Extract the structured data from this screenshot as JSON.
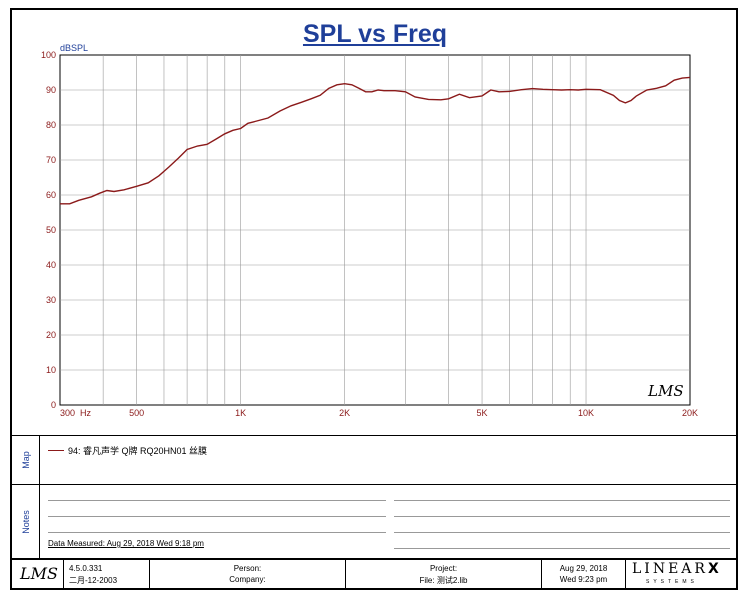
{
  "chart_data": {
    "type": "line",
    "title": "SPL vs Freq",
    "ylabel": "dBSPL",
    "xlabel": "",
    "xscale": "log",
    "xlim": [
      300,
      20000
    ],
    "ylim": [
      0,
      100
    ],
    "grid": true,
    "y_ticks": [
      "0",
      "10",
      "20",
      "30",
      "40",
      "50",
      "60",
      "70",
      "80",
      "90",
      "100"
    ],
    "x_ticks": [
      {
        "value": 300,
        "label": "300  Hz"
      },
      {
        "value": 500,
        "label": "500"
      },
      {
        "value": 1000,
        "label": "1K"
      },
      {
        "value": 2000,
        "label": "2K"
      },
      {
        "value": 5000,
        "label": "5K"
      },
      {
        "value": 10000,
        "label": "10K"
      },
      {
        "value": 20000,
        "label": "20K"
      }
    ],
    "series": [
      {
        "name": "94: 睿凡声学 Q牌 RQ20HN01 丝膜",
        "color": "#8b1a1a",
        "x": [
          300,
          320,
          340,
          370,
          390,
          410,
          430,
          460,
          500,
          540,
          580,
          620,
          660,
          700,
          750,
          800,
          850,
          900,
          950,
          1000,
          1050,
          1100,
          1200,
          1300,
          1400,
          1500,
          1600,
          1700,
          1800,
          1900,
          2000,
          2100,
          2200,
          2300,
          2400,
          2500,
          2600,
          2800,
          3000,
          3200,
          3500,
          3800,
          4000,
          4300,
          4600,
          5000,
          5300,
          5600,
          6000,
          6500,
          7000,
          7500,
          8000,
          8500,
          9000,
          9500,
          10000,
          11000,
          12000,
          12500,
          13000,
          13500,
          14000,
          15000,
          16000,
          17000,
          18000,
          19000,
          20000
        ],
        "y": [
          57.5,
          57.5,
          58.5,
          59.5,
          60.5,
          61.3,
          61,
          61.5,
          62.5,
          63.5,
          65.5,
          68,
          70.5,
          73,
          74,
          74.5,
          76,
          77.5,
          78.5,
          79,
          80.5,
          81,
          82,
          84,
          85.5,
          86.5,
          87.5,
          88.5,
          90.5,
          91.5,
          91.8,
          91.5,
          90.5,
          89.5,
          89.5,
          90,
          89.8,
          89.8,
          89.5,
          88,
          87.3,
          87.2,
          87.5,
          88.8,
          87.8,
          88.3,
          90,
          89.5,
          89.6,
          90.1,
          90.4,
          90.2,
          90.1,
          90,
          90.1,
          90,
          90.2,
          90.1,
          88.5,
          87,
          86.3,
          87,
          88.3,
          90,
          90.5,
          91.2,
          92.8,
          93.4,
          93.6
        ]
      }
    ]
  },
  "side_labels": {
    "map": "Map",
    "notes": "Notes"
  },
  "notes": {
    "measured": "Data Measured: Aug 29, 2018  Wed  9:18 pm"
  },
  "footer": {
    "logo": "LMS",
    "version": "4.5.0.331",
    "build_date": "二月-12-2003",
    "person": "Person:",
    "company": "Company:",
    "project": "Project:",
    "file": "File: 测试2.lib",
    "date": "Aug 29, 2018",
    "time": "Wed  9:23 pm",
    "brand": "LINEAR",
    "brand_x": "X",
    "brand_sub": "SYSTEMS"
  },
  "watermark": "LMS"
}
